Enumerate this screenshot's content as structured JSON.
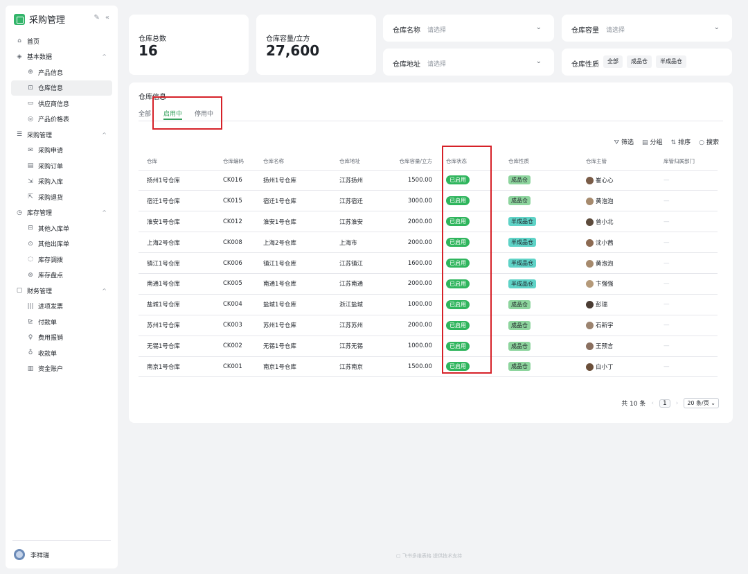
{
  "sidebar": {
    "title": "采购管理",
    "items": [
      {
        "label": "首页",
        "icon": "home-icon",
        "glyph": "⌂",
        "level": "group"
      },
      {
        "label": "基本数据",
        "icon": "layers-icon",
        "glyph": "◈",
        "level": "group",
        "caret": "^"
      },
      {
        "label": "产品信息",
        "icon": "globe-icon",
        "glyph": "⊕",
        "level": "sub"
      },
      {
        "label": "仓库信息",
        "icon": "warehouse-icon",
        "glyph": "⊡",
        "level": "sub",
        "active": true
      },
      {
        "label": "供应商信息",
        "icon": "monitor-icon",
        "glyph": "▭",
        "level": "sub"
      },
      {
        "label": "产品价格表",
        "icon": "price-icon",
        "glyph": "◎",
        "level": "sub"
      },
      {
        "label": "采购管理",
        "icon": "list-icon",
        "glyph": "☰",
        "level": "group",
        "caret": "^"
      },
      {
        "label": "采购申请",
        "icon": "mail-icon",
        "glyph": "✉",
        "level": "sub"
      },
      {
        "label": "采购订单",
        "icon": "calendar-icon",
        "glyph": "▤",
        "level": "sub"
      },
      {
        "label": "采购入库",
        "icon": "inbound-icon",
        "glyph": "⇲",
        "level": "sub"
      },
      {
        "label": "采购退货",
        "icon": "return-icon",
        "glyph": "⇱",
        "level": "sub"
      },
      {
        "label": "库存管理",
        "icon": "clock-icon",
        "glyph": "◷",
        "level": "group",
        "caret": "^"
      },
      {
        "label": "其他入库单",
        "icon": "in-doc-icon",
        "glyph": "⊟",
        "level": "sub"
      },
      {
        "label": "其他出库单",
        "icon": "out-doc-icon",
        "glyph": "⊙",
        "level": "sub"
      },
      {
        "label": "库存调拨",
        "icon": "transfer-icon",
        "glyph": "◌",
        "level": "sub"
      },
      {
        "label": "库存盘点",
        "icon": "check-icon",
        "glyph": "⊛",
        "level": "sub"
      },
      {
        "label": "财务管理",
        "icon": "finance-icon",
        "glyph": "▢",
        "level": "group",
        "caret": "^"
      },
      {
        "label": "进项发票",
        "icon": "barcode-icon",
        "glyph": "|||",
        "level": "sub"
      },
      {
        "label": "付款单",
        "icon": "payment-icon",
        "glyph": "⊵",
        "level": "sub"
      },
      {
        "label": "费用报销",
        "icon": "expense-icon",
        "glyph": "♀",
        "level": "sub"
      },
      {
        "label": "收款单",
        "icon": "receipt-icon",
        "glyph": "♁",
        "level": "sub"
      },
      {
        "label": "资金账户",
        "icon": "account-chart-icon",
        "glyph": "▥",
        "level": "sub"
      }
    ],
    "user": "李祥瑞"
  },
  "stats": {
    "total_label": "仓库总数",
    "total_value": "16",
    "capacity_label": "仓库容量/立方",
    "capacity_value": "27,600"
  },
  "filters": {
    "name_label": "仓库名称",
    "name_placeholder": "请选择",
    "capacity_label": "仓库容量",
    "capacity_placeholder": "请选择",
    "address_label": "仓库地址",
    "address_placeholder": "请选择",
    "nature_label": "仓库性质",
    "nature_chips": [
      "全部",
      "成品仓",
      "半成品仓"
    ]
  },
  "panel": {
    "title": "仓库信息",
    "tabs": [
      "全部",
      "启用中",
      "停用中"
    ],
    "active_tab": 1,
    "toolbar": {
      "filter": "筛选",
      "group": "分组",
      "sort": "排序",
      "search": "搜索"
    }
  },
  "table": {
    "columns": [
      "仓库",
      "仓库编码",
      "仓库名称",
      "仓库地址",
      "仓库容量/立方",
      "仓库状态",
      "仓库性质",
      "仓库主管",
      "库管归属部门"
    ],
    "rows": [
      {
        "warehouse": "扬州1号仓库",
        "code": "CK016",
        "name": "扬州1号仓库",
        "address": "江苏扬州",
        "capacity": "1500.00",
        "status": "已启用",
        "nature": "成品仓",
        "manager": "崔心心",
        "dept": "—"
      },
      {
        "warehouse": "宿迁1号仓库",
        "code": "CK015",
        "name": "宿迁1号仓库",
        "address": "江苏宿迁",
        "capacity": "3000.00",
        "status": "已启用",
        "nature": "成品仓",
        "manager": "黄泡泡",
        "dept": "—"
      },
      {
        "warehouse": "淮安1号仓库",
        "code": "CK012",
        "name": "淮安1号仓库",
        "address": "江苏淮安",
        "capacity": "2000.00",
        "status": "已启用",
        "nature": "半成品仓",
        "manager": "曾小北",
        "dept": "—"
      },
      {
        "warehouse": "上海2号仓库",
        "code": "CK008",
        "name": "上海2号仓库",
        "address": "上海市",
        "capacity": "2000.00",
        "status": "已启用",
        "nature": "半成品仓",
        "manager": "沈小茜",
        "dept": "—"
      },
      {
        "warehouse": "镇江1号仓库",
        "code": "CK006",
        "name": "镇江1号仓库",
        "address": "江苏镇江",
        "capacity": "1600.00",
        "status": "已启用",
        "nature": "半成品仓",
        "manager": "黄泡泡",
        "dept": "—"
      },
      {
        "warehouse": "南通1号仓库",
        "code": "CK005",
        "name": "南通1号仓库",
        "address": "江苏南通",
        "capacity": "2000.00",
        "status": "已启用",
        "nature": "半成品仓",
        "manager": "卞强强",
        "dept": "—"
      },
      {
        "warehouse": "盐城1号仓库",
        "code": "CK004",
        "name": "盐城1号仓库",
        "address": "浙江盐城",
        "capacity": "1000.00",
        "status": "已启用",
        "nature": "成品仓",
        "manager": "彭瑞",
        "dept": "—"
      },
      {
        "warehouse": "苏州1号仓库",
        "code": "CK003",
        "name": "苏州1号仓库",
        "address": "江苏苏州",
        "capacity": "2000.00",
        "status": "已启用",
        "nature": "成品仓",
        "manager": "石新宇",
        "dept": "—"
      },
      {
        "warehouse": "无锡1号仓库",
        "code": "CK002",
        "name": "无锡1号仓库",
        "address": "江苏无锡",
        "capacity": "1000.00",
        "status": "已启用",
        "nature": "成品仓",
        "manager": "王预言",
        "dept": "—"
      },
      {
        "warehouse": "南京1号仓库",
        "code": "CK001",
        "name": "南京1号仓库",
        "address": "江苏南京",
        "capacity": "1500.00",
        "status": "已启用",
        "nature": "成品仓",
        "manager": "白小丁",
        "dept": "—"
      }
    ]
  },
  "pagination": {
    "total": "共 10 条",
    "page": "1",
    "page_size": "20 条/页"
  },
  "footer": "飞书多维表格 提供技术支持",
  "colors": {
    "accent": "#33a05b",
    "status_green": "#2fb55d",
    "finish_badge": "#8ed59e",
    "semi_badge": "#5fd3c7",
    "highlight_red": "#d62128"
  }
}
